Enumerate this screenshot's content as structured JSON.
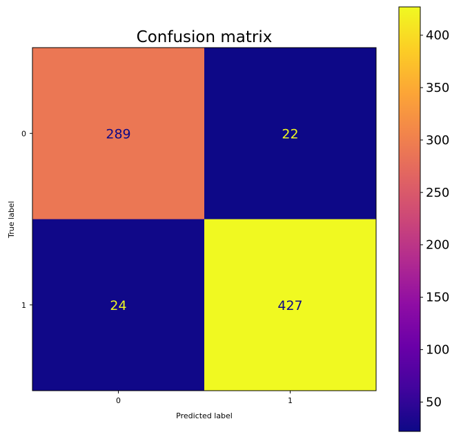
{
  "chart_data": {
    "type": "heatmap",
    "title": "Confusion matrix",
    "xlabel": "Predicted label",
    "ylabel": "True label",
    "x_categories": [
      "0",
      "1"
    ],
    "y_categories": [
      "0",
      "1"
    ],
    "values": [
      [
        289,
        22
      ],
      [
        24,
        427
      ]
    ],
    "colormap": "plasma",
    "colorbar": {
      "min": 22,
      "max": 427,
      "ticks": [
        50,
        100,
        150,
        200,
        250,
        300,
        350,
        400
      ]
    },
    "grid": false,
    "text_colors": {
      "dark": "#0d0887",
      "light": "#f0f921"
    }
  }
}
